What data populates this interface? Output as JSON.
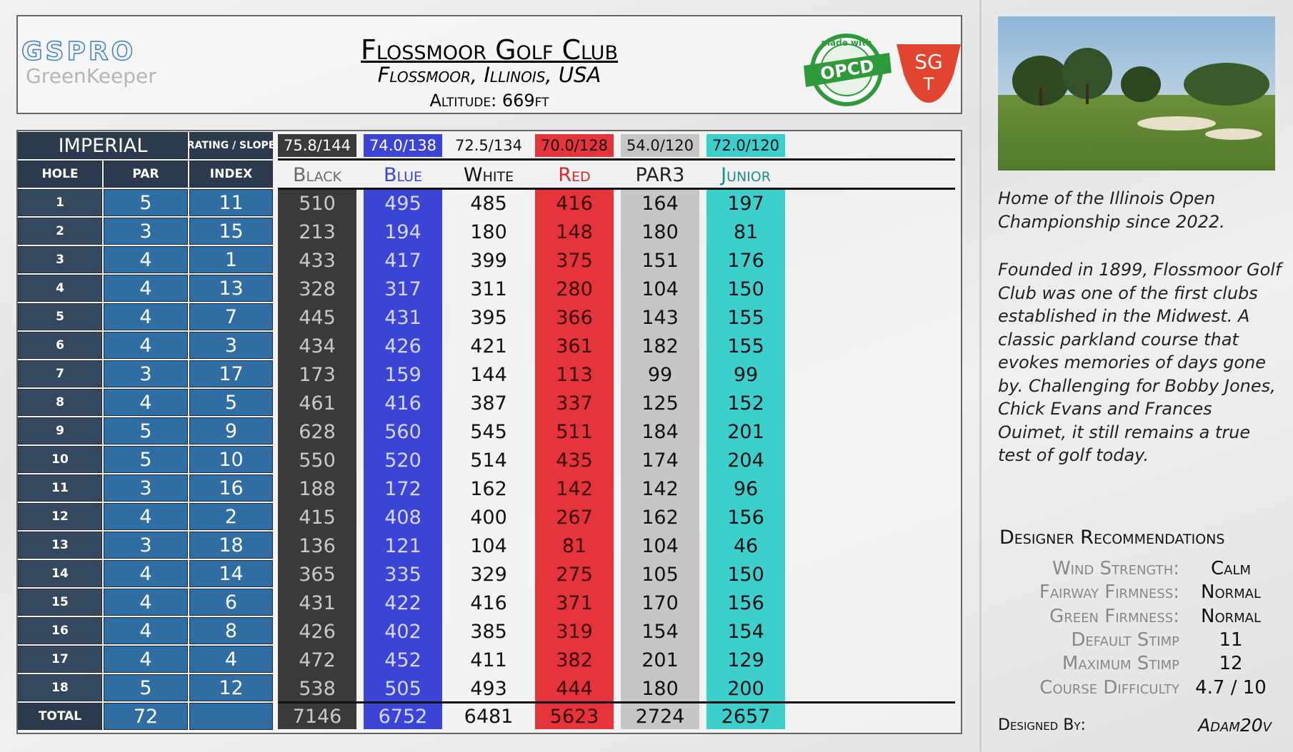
{
  "header": {
    "logo": "GSPRO",
    "logo_sub": "GreenKeeper",
    "title": "Flossmoor Golf Club",
    "location": "Flossmoor, Illinois, USA",
    "altitude": "Altitude: 669ft",
    "badge_top": "made with",
    "badge": "OPCD",
    "sgt_top": "SG",
    "sgt_bottom": "T"
  },
  "table": {
    "unit": "IMPERIAL",
    "rating_label": "RATING / SLOPE",
    "columns": [
      "HOLE",
      "PAR",
      "INDEX"
    ],
    "total_label": "TOTAL",
    "total_par": 72,
    "holes": [
      1,
      2,
      3,
      4,
      5,
      6,
      7,
      8,
      9,
      10,
      11,
      12,
      13,
      14,
      15,
      16,
      17,
      18
    ],
    "par": [
      5,
      3,
      4,
      4,
      4,
      4,
      3,
      4,
      5,
      5,
      3,
      4,
      3,
      4,
      4,
      4,
      4,
      5
    ],
    "index": [
      11,
      15,
      1,
      13,
      7,
      3,
      17,
      5,
      9,
      10,
      16,
      2,
      18,
      14,
      6,
      8,
      4,
      12
    ],
    "tees": [
      {
        "name": "Black",
        "rating": "75.8/144",
        "color": "#3a3a3a",
        "text_color": "#c9c9c9",
        "name_color": "#6a6a6a",
        "yardages": [
          510,
          213,
          433,
          328,
          445,
          434,
          173,
          461,
          628,
          550,
          188,
          415,
          136,
          365,
          431,
          426,
          472,
          538
        ],
        "total": 7146
      },
      {
        "name": "Blue",
        "rating": "74.0/138",
        "color": "#3c44d6",
        "text_color": "#d4d8ff",
        "name_color": "#3c44d6",
        "yardages": [
          495,
          194,
          417,
          317,
          431,
          426,
          159,
          416,
          560,
          520,
          172,
          408,
          121,
          335,
          422,
          402,
          452,
          505
        ],
        "total": 6752
      },
      {
        "name": "White",
        "rating": "72.5/134",
        "color": "#f3f3f3",
        "text_color": "#111111",
        "name_color": "#111111",
        "yardages": [
          485,
          180,
          399,
          311,
          395,
          421,
          144,
          387,
          545,
          514,
          162,
          400,
          104,
          329,
          416,
          385,
          411,
          493
        ],
        "total": 6481
      },
      {
        "name": "Red",
        "rating": "70.0/128",
        "color": "#e6343c",
        "text_color": "#3a0808",
        "name_color": "#d8262e",
        "yardages": [
          416,
          148,
          375,
          280,
          366,
          361,
          113,
          337,
          511,
          435,
          142,
          267,
          81,
          275,
          371,
          319,
          382,
          444
        ],
        "total": 5623
      },
      {
        "name": "PAR3",
        "rating": "54.0/120",
        "color": "#c6c6c6",
        "text_color": "#111111",
        "name_color": "#222222",
        "yardages": [
          164,
          180,
          151,
          104,
          143,
          182,
          99,
          125,
          184,
          174,
          142,
          162,
          104,
          105,
          170,
          154,
          201,
          180
        ],
        "total": 2724
      },
      {
        "name": "Junior",
        "rating": "72.0/120",
        "color": "#3ccfcc",
        "text_color": "#111111",
        "name_color": "#1a8f8d",
        "yardages": [
          197,
          81,
          176,
          150,
          155,
          155,
          99,
          152,
          201,
          204,
          96,
          156,
          46,
          150,
          156,
          154,
          129,
          200
        ],
        "total": 2657
      }
    ]
  },
  "sidebar": {
    "description": [
      "Home of the Illinois Open Championship since 2022.",
      "Founded in 1899, Flossmoor Golf Club was one of the first clubs established in the Midwest. A classic parkland course that evokes memories of days gone by. Challenging for Bobby Jones, Chick Evans and Frances Ouimet, it still remains a true test of golf today."
    ],
    "recommendations_title": "Designer Recommendations",
    "recommendations": [
      {
        "label": "Wind Strength:",
        "value": "Calm"
      },
      {
        "label": "Fairway Firmness:",
        "value": "Normal"
      },
      {
        "label": "Green Firmness:",
        "value": "Normal"
      },
      {
        "label": "Default Stimp",
        "value": "11"
      },
      {
        "label": "Maximum Stimp",
        "value": "12"
      },
      {
        "label": "Course Difficulty",
        "value": "4.7 / 10"
      }
    ],
    "designed_by_label": "Designed By:",
    "designed_by": "Adam20v"
  }
}
